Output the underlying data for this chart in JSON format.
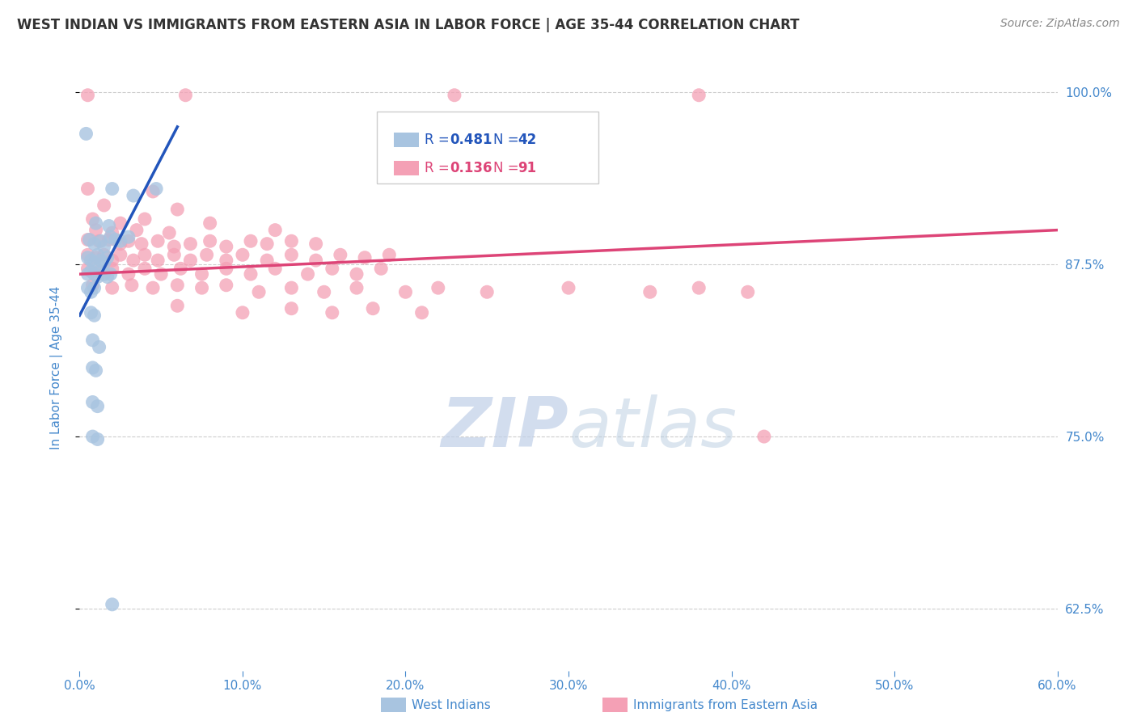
{
  "title": "WEST INDIAN VS IMMIGRANTS FROM EASTERN ASIA IN LABOR FORCE | AGE 35-44 CORRELATION CHART",
  "source": "Source: ZipAtlas.com",
  "ylabel": "In Labor Force | Age 35-44",
  "xlim": [
    0.0,
    0.6
  ],
  "ylim": [
    0.58,
    1.02
  ],
  "yticks": [
    0.625,
    0.75,
    0.875,
    1.0
  ],
  "ytick_labels": [
    "62.5%",
    "75.0%",
    "87.5%",
    "100.0%"
  ],
  "xticks": [
    0.0,
    0.1,
    0.2,
    0.3,
    0.4,
    0.5,
    0.6
  ],
  "xtick_labels": [
    "0.0%",
    "10.0%",
    "20.0%",
    "30.0%",
    "40.0%",
    "50.0%",
    "60.0%"
  ],
  "R1": "0.481",
  "N1": "42",
  "R2": "0.136",
  "N2": "91",
  "blue_fill": "#a8c4e0",
  "pink_fill": "#f4a0b5",
  "blue_line": "#2255bb",
  "pink_line": "#dd4477",
  "blue_label_color": "#2255bb",
  "pink_label_color": "#dd4477",
  "title_color": "#333333",
  "axis_color": "#4488cc",
  "source_color": "#888888",
  "watermark_color": "#d5e5f5",
  "grid_color": "#cccccc",
  "bg_color": "#ffffff",
  "blue_scatter": [
    [
      0.004,
      0.97
    ],
    [
      0.02,
      0.93
    ],
    [
      0.033,
      0.925
    ],
    [
      0.047,
      0.93
    ],
    [
      0.01,
      0.905
    ],
    [
      0.018,
      0.903
    ],
    [
      0.006,
      0.893
    ],
    [
      0.009,
      0.89
    ],
    [
      0.013,
      0.892
    ],
    [
      0.015,
      0.888
    ],
    [
      0.019,
      0.895
    ],
    [
      0.022,
      0.893
    ],
    [
      0.025,
      0.892
    ],
    [
      0.03,
      0.895
    ],
    [
      0.005,
      0.88
    ],
    [
      0.007,
      0.878
    ],
    [
      0.009,
      0.876
    ],
    [
      0.011,
      0.882
    ],
    [
      0.013,
      0.878
    ],
    [
      0.015,
      0.876
    ],
    [
      0.017,
      0.88
    ],
    [
      0.005,
      0.868
    ],
    [
      0.007,
      0.87
    ],
    [
      0.009,
      0.868
    ],
    [
      0.011,
      0.866
    ],
    [
      0.013,
      0.87
    ],
    [
      0.015,
      0.868
    ],
    [
      0.017,
      0.866
    ],
    [
      0.019,
      0.868
    ],
    [
      0.005,
      0.858
    ],
    [
      0.007,
      0.855
    ],
    [
      0.009,
      0.858
    ],
    [
      0.007,
      0.84
    ],
    [
      0.009,
      0.838
    ],
    [
      0.008,
      0.82
    ],
    [
      0.012,
      0.815
    ],
    [
      0.008,
      0.8
    ],
    [
      0.01,
      0.798
    ],
    [
      0.008,
      0.775
    ],
    [
      0.011,
      0.772
    ],
    [
      0.008,
      0.75
    ],
    [
      0.011,
      0.748
    ],
    [
      0.02,
      0.628
    ]
  ],
  "pink_scatter": [
    [
      0.005,
      0.998
    ],
    [
      0.065,
      0.998
    ],
    [
      0.23,
      0.998
    ],
    [
      0.38,
      0.998
    ],
    [
      0.005,
      0.93
    ],
    [
      0.045,
      0.928
    ],
    [
      0.015,
      0.918
    ],
    [
      0.06,
      0.915
    ],
    [
      0.008,
      0.908
    ],
    [
      0.025,
      0.905
    ],
    [
      0.04,
      0.908
    ],
    [
      0.01,
      0.9
    ],
    [
      0.02,
      0.898
    ],
    [
      0.035,
      0.9
    ],
    [
      0.055,
      0.898
    ],
    [
      0.08,
      0.905
    ],
    [
      0.12,
      0.9
    ],
    [
      0.005,
      0.893
    ],
    [
      0.012,
      0.892
    ],
    [
      0.018,
      0.893
    ],
    [
      0.025,
      0.89
    ],
    [
      0.03,
      0.892
    ],
    [
      0.038,
      0.89
    ],
    [
      0.048,
      0.892
    ],
    [
      0.058,
      0.888
    ],
    [
      0.068,
      0.89
    ],
    [
      0.08,
      0.892
    ],
    [
      0.09,
      0.888
    ],
    [
      0.105,
      0.892
    ],
    [
      0.115,
      0.89
    ],
    [
      0.13,
      0.892
    ],
    [
      0.145,
      0.89
    ],
    [
      0.005,
      0.882
    ],
    [
      0.01,
      0.88
    ],
    [
      0.015,
      0.882
    ],
    [
      0.02,
      0.878
    ],
    [
      0.025,
      0.882
    ],
    [
      0.033,
      0.878
    ],
    [
      0.04,
      0.882
    ],
    [
      0.048,
      0.878
    ],
    [
      0.058,
      0.882
    ],
    [
      0.068,
      0.878
    ],
    [
      0.078,
      0.882
    ],
    [
      0.09,
      0.878
    ],
    [
      0.1,
      0.882
    ],
    [
      0.115,
      0.878
    ],
    [
      0.13,
      0.882
    ],
    [
      0.145,
      0.878
    ],
    [
      0.16,
      0.882
    ],
    [
      0.175,
      0.88
    ],
    [
      0.19,
      0.882
    ],
    [
      0.005,
      0.872
    ],
    [
      0.012,
      0.87
    ],
    [
      0.02,
      0.872
    ],
    [
      0.03,
      0.868
    ],
    [
      0.04,
      0.872
    ],
    [
      0.05,
      0.868
    ],
    [
      0.062,
      0.872
    ],
    [
      0.075,
      0.868
    ],
    [
      0.09,
      0.872
    ],
    [
      0.105,
      0.868
    ],
    [
      0.12,
      0.872
    ],
    [
      0.14,
      0.868
    ],
    [
      0.155,
      0.872
    ],
    [
      0.17,
      0.868
    ],
    [
      0.185,
      0.872
    ],
    [
      0.008,
      0.86
    ],
    [
      0.02,
      0.858
    ],
    [
      0.032,
      0.86
    ],
    [
      0.045,
      0.858
    ],
    [
      0.06,
      0.86
    ],
    [
      0.075,
      0.858
    ],
    [
      0.09,
      0.86
    ],
    [
      0.11,
      0.855
    ],
    [
      0.13,
      0.858
    ],
    [
      0.15,
      0.855
    ],
    [
      0.17,
      0.858
    ],
    [
      0.2,
      0.855
    ],
    [
      0.22,
      0.858
    ],
    [
      0.25,
      0.855
    ],
    [
      0.3,
      0.858
    ],
    [
      0.35,
      0.855
    ],
    [
      0.38,
      0.858
    ],
    [
      0.41,
      0.855
    ],
    [
      0.06,
      0.845
    ],
    [
      0.1,
      0.84
    ],
    [
      0.13,
      0.843
    ],
    [
      0.155,
      0.84
    ],
    [
      0.18,
      0.843
    ],
    [
      0.21,
      0.84
    ],
    [
      0.42,
      0.75
    ]
  ],
  "blue_trend_x": [
    0.0,
    0.06
  ],
  "blue_trend_y": [
    0.838,
    0.975
  ],
  "pink_trend_x": [
    0.0,
    0.6
  ],
  "pink_trend_y": [
    0.868,
    0.9
  ]
}
